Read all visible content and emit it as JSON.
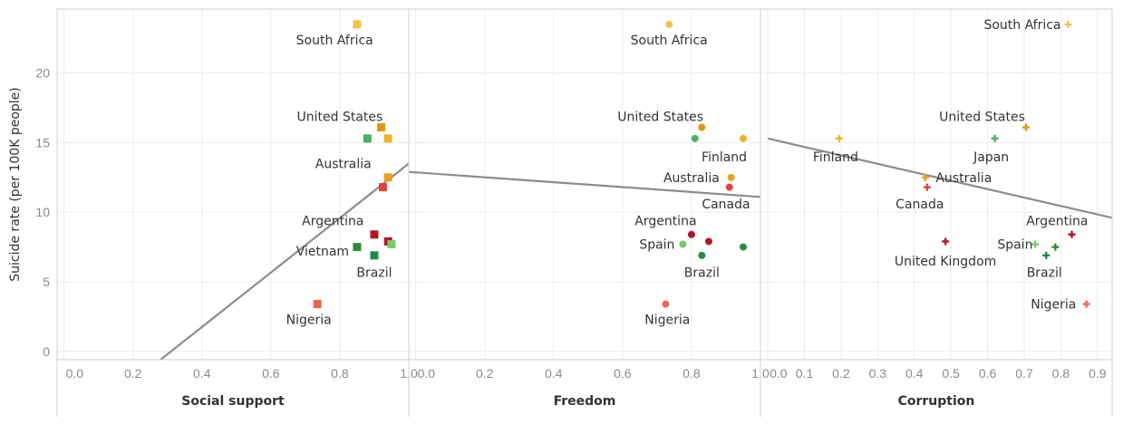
{
  "chart_data": {
    "type": "scatter",
    "ylabel": "Suicide rate (per 100K people)",
    "ylim": [
      -0.6,
      24.6
    ],
    "yticks": [
      0,
      5,
      10,
      15,
      20
    ],
    "grid": true,
    "colors": {
      "South Africa": "#f3c24a",
      "United States": "#e0960f",
      "Finland": "#f0b429",
      "Australia": "#e8a020",
      "Canada": "#e5413a",
      "Argentina": "#b3121f",
      "United Kingdom": "#b2182b",
      "Japan": "#4daf63",
      "Spain": "#7bc86c",
      "Vietnam": "#2e8b3d",
      "Brazil": "#238b45",
      "Nigeria": "#f06450",
      "trend": "#8c8c8c"
    },
    "panels": [
      {
        "xlabel": "Social support",
        "xlim": [
          -0.02,
          1.0
        ],
        "xticks": [
          "0.0",
          "0.2",
          "0.4",
          "0.6",
          "0.8",
          "1.0"
        ],
        "xtick_values": [
          0,
          0.2,
          0.4,
          0.6,
          0.8,
          1.0
        ],
        "marker": "square",
        "trend": [
          [
            0.28,
            -0.6
          ],
          [
            1.0,
            13.5
          ]
        ],
        "points": [
          {
            "country": "South Africa",
            "x": 0.85,
            "y": 23.5
          },
          {
            "country": "United States",
            "x": 0.92,
            "y": 16.1
          },
          {
            "country": "Finland",
            "x": 0.94,
            "y": 15.3
          },
          {
            "country": "Japan",
            "x": 0.88,
            "y": 15.3
          },
          {
            "country": "Australia",
            "x": 0.94,
            "y": 12.5
          },
          {
            "country": "Canada",
            "x": 0.925,
            "y": 11.8
          },
          {
            "country": "Argentina",
            "x": 0.9,
            "y": 8.4
          },
          {
            "country": "United Kingdom",
            "x": 0.94,
            "y": 7.9
          },
          {
            "country": "Spain",
            "x": 0.95,
            "y": 7.7
          },
          {
            "country": "Vietnam",
            "x": 0.85,
            "y": 7.5
          },
          {
            "country": "Brazil",
            "x": 0.9,
            "y": 6.9
          },
          {
            "country": "Nigeria",
            "x": 0.735,
            "y": 3.4
          }
        ],
        "labels": [
          {
            "text": "South Africa",
            "x": 0.785,
            "y": 22.4
          },
          {
            "text": "United States",
            "x": 0.8,
            "y": 16.9
          },
          {
            "text": "Australia",
            "x": 0.81,
            "y": 13.5
          },
          {
            "text": "Argentina",
            "x": 0.78,
            "y": 9.4
          },
          {
            "text": "Vietnam",
            "x": 0.75,
            "y": 7.2
          },
          {
            "text": "Brazil",
            "x": 0.9,
            "y": 5.7
          },
          {
            "text": "Nigeria",
            "x": 0.71,
            "y": 2.3
          }
        ]
      },
      {
        "xlabel": "Freedom",
        "xlim": [
          -0.02,
          1.0
        ],
        "xticks": [
          "0.0",
          "0.2",
          "0.4",
          "0.6",
          "0.8",
          "1.0"
        ],
        "xtick_values": [
          0,
          0.2,
          0.4,
          0.6,
          0.8,
          1.0
        ],
        "marker": "circle",
        "trend": [
          [
            -0.02,
            12.9
          ],
          [
            1.0,
            11.1
          ]
        ],
        "points": [
          {
            "country": "South Africa",
            "x": 0.735,
            "y": 23.5
          },
          {
            "country": "United States",
            "x": 0.83,
            "y": 16.1
          },
          {
            "country": "Finland",
            "x": 0.95,
            "y": 15.3
          },
          {
            "country": "Japan",
            "x": 0.81,
            "y": 15.3
          },
          {
            "country": "Australia",
            "x": 0.915,
            "y": 12.5
          },
          {
            "country": "Canada",
            "x": 0.91,
            "y": 11.8
          },
          {
            "country": "Argentina",
            "x": 0.8,
            "y": 8.4
          },
          {
            "country": "United Kingdom",
            "x": 0.85,
            "y": 7.9
          },
          {
            "country": "Spain",
            "x": 0.775,
            "y": 7.7
          },
          {
            "country": "Vietnam",
            "x": 0.95,
            "y": 7.5
          },
          {
            "country": "Brazil",
            "x": 0.83,
            "y": 6.9
          },
          {
            "country": "Nigeria",
            "x": 0.725,
            "y": 3.4
          }
        ],
        "labels": [
          {
            "text": "South Africa",
            "x": 0.735,
            "y": 22.4
          },
          {
            "text": "United States",
            "x": 0.71,
            "y": 16.9
          },
          {
            "text": "Finland",
            "x": 0.895,
            "y": 14.0
          },
          {
            "text": "Australia",
            "x": 0.8,
            "y": 12.5
          },
          {
            "text": "Canada",
            "x": 0.9,
            "y": 10.6
          },
          {
            "text": "Argentina",
            "x": 0.725,
            "y": 9.4
          },
          {
            "text": "Spain",
            "x": 0.7,
            "y": 7.7
          },
          {
            "text": "Brazil",
            "x": 0.83,
            "y": 5.7
          },
          {
            "text": "Nigeria",
            "x": 0.73,
            "y": 2.3
          }
        ]
      },
      {
        "xlabel": "Corruption",
        "xlim": [
          -0.02,
          0.94
        ],
        "xticks": [
          "0.0",
          "0.1",
          "0.2",
          "0.3",
          "0.4",
          "0.5",
          "0.6",
          "0.7",
          "0.8",
          "0.9"
        ],
        "xtick_values": [
          0,
          0.1,
          0.2,
          0.3,
          0.4,
          0.5,
          0.6,
          0.7,
          0.8,
          0.9
        ],
        "marker": "plus",
        "trend": [
          [
            0.0,
            15.3
          ],
          [
            0.94,
            9.6
          ]
        ],
        "points": [
          {
            "country": "South Africa",
            "x": 0.82,
            "y": 23.5
          },
          {
            "country": "United States",
            "x": 0.705,
            "y": 16.1
          },
          {
            "country": "Finland",
            "x": 0.195,
            "y": 15.3
          },
          {
            "country": "Japan",
            "x": 0.62,
            "y": 15.3
          },
          {
            "country": "Australia",
            "x": 0.43,
            "y": 12.5
          },
          {
            "country": "Canada",
            "x": 0.435,
            "y": 11.8
          },
          {
            "country": "Argentina",
            "x": 0.83,
            "y": 8.4
          },
          {
            "country": "United Kingdom",
            "x": 0.485,
            "y": 7.9
          },
          {
            "country": "Spain",
            "x": 0.73,
            "y": 7.7
          },
          {
            "country": "Vietnam",
            "x": 0.785,
            "y": 7.5
          },
          {
            "country": "Brazil",
            "x": 0.76,
            "y": 6.9
          },
          {
            "country": "Nigeria",
            "x": 0.87,
            "y": 3.4
          }
        ],
        "labels": [
          {
            "text": "South Africa",
            "x": 0.695,
            "y": 23.5
          },
          {
            "text": "United States",
            "x": 0.585,
            "y": 16.9
          },
          {
            "text": "Finland",
            "x": 0.185,
            "y": 14.0
          },
          {
            "text": "Japan",
            "x": 0.61,
            "y": 14.0
          },
          {
            "text": "Australia",
            "x": 0.535,
            "y": 12.5
          },
          {
            "text": "Canada",
            "x": 0.415,
            "y": 10.6
          },
          {
            "text": "Argentina",
            "x": 0.79,
            "y": 9.4
          },
          {
            "text": "Spain",
            "x": 0.675,
            "y": 7.7
          },
          {
            "text": "United Kingdom",
            "x": 0.485,
            "y": 6.5
          },
          {
            "text": "Brazil",
            "x": 0.755,
            "y": 5.7
          },
          {
            "text": "Nigeria",
            "x": 0.78,
            "y": 3.4
          }
        ]
      }
    ]
  }
}
